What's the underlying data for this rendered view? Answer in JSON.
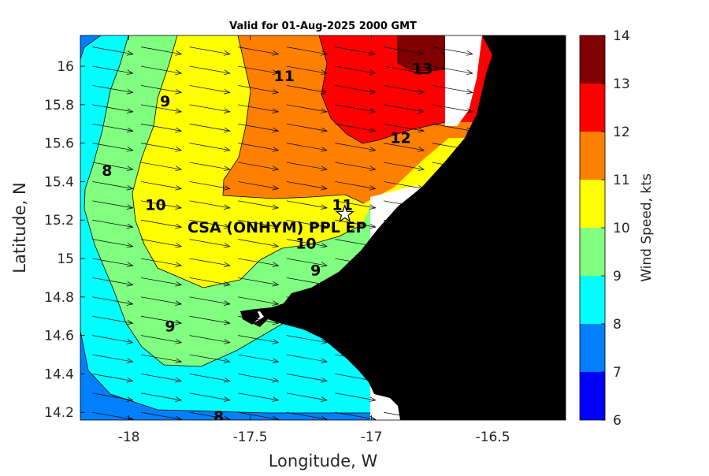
{
  "chart_data": {
    "type": "heatmap",
    "title": "Valid for 01-Aug-2025 2000 GMT",
    "xlabel": "Longitude, W",
    "ylabel": "Latitude, N",
    "xlim": [
      -18.2,
      -16.2
    ],
    "ylim": [
      14.16,
      16.16
    ],
    "x_ticks": [
      -18,
      -17.5,
      -17,
      -16.5
    ],
    "y_ticks": [
      14.2,
      14.4,
      14.6,
      14.8,
      15,
      15.2,
      15.4,
      15.6,
      15.8,
      16
    ],
    "colorbar": {
      "label": "Wind Speed, kts",
      "ticks": [
        6,
        7,
        8,
        9,
        10,
        11,
        12,
        13,
        14
      ],
      "levels": [
        {
          "range": [
            6,
            7
          ],
          "color": "#0000ff"
        },
        {
          "range": [
            7,
            8
          ],
          "color": "#0080ff"
        },
        {
          "range": [
            8,
            9
          ],
          "color": "#00ffff"
        },
        {
          "range": [
            9,
            10
          ],
          "color": "#80ff80"
        },
        {
          "range": [
            10,
            11
          ],
          "color": "#ffff00"
        },
        {
          "range": [
            11,
            12
          ],
          "color": "#ff8000"
        },
        {
          "range": [
            12,
            13
          ],
          "color": "#ff0000"
        },
        {
          "range": [
            13,
            14
          ],
          "color": "#800000"
        }
      ]
    },
    "contour_labels": [
      {
        "text": "13",
        "lon": -16.79,
        "lat": 15.99
      },
      {
        "text": "12",
        "lon": -16.88,
        "lat": 15.63
      },
      {
        "text": "11",
        "lon": -17.36,
        "lat": 15.95
      },
      {
        "text": "11",
        "lon": -17.12,
        "lat": 15.28
      },
      {
        "text": "10",
        "lon": -17.89,
        "lat": 15.28
      },
      {
        "text": "10",
        "lon": -17.27,
        "lat": 15.08
      },
      {
        "text": "9",
        "lon": -17.85,
        "lat": 15.82
      },
      {
        "text": "9",
        "lon": -17.23,
        "lat": 14.94
      },
      {
        "text": "9",
        "lon": -17.83,
        "lat": 14.65
      },
      {
        "text": "8",
        "lon": -18.09,
        "lat": 15.46
      },
      {
        "text": "8",
        "lon": -17.63,
        "lat": 14.18
      }
    ],
    "site": {
      "name": "CSA (ONHYM) PPL EP",
      "lon": -17.11,
      "lat": 15.23,
      "marker": "star"
    },
    "wind_vectors": {
      "direction": "toward east-southeast",
      "grid_spacing_deg": [
        0.2,
        0.1
      ]
    },
    "land_color": "#000000",
    "grid": false,
    "legend": "colorbar right"
  }
}
